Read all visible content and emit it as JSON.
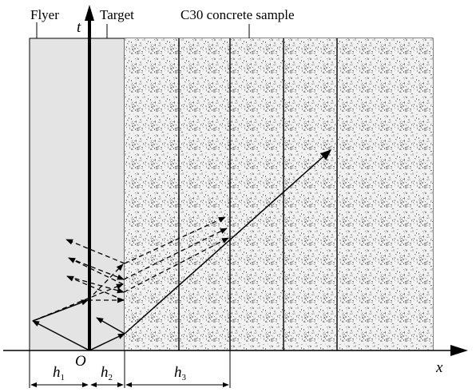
{
  "labels": {
    "flyer": "Flyer",
    "target": "Target",
    "sample": "C30 concrete sample",
    "t_axis": "t",
    "x_axis": "x",
    "origin": "O",
    "h1_main": "h",
    "h1_sub": "1",
    "h2_main": "h",
    "h2_sub": "2",
    "h3_main": "h",
    "h3_sub": "3"
  },
  "colors": {
    "flyer_fill": "#e4e4e4",
    "line": "#000000"
  }
}
